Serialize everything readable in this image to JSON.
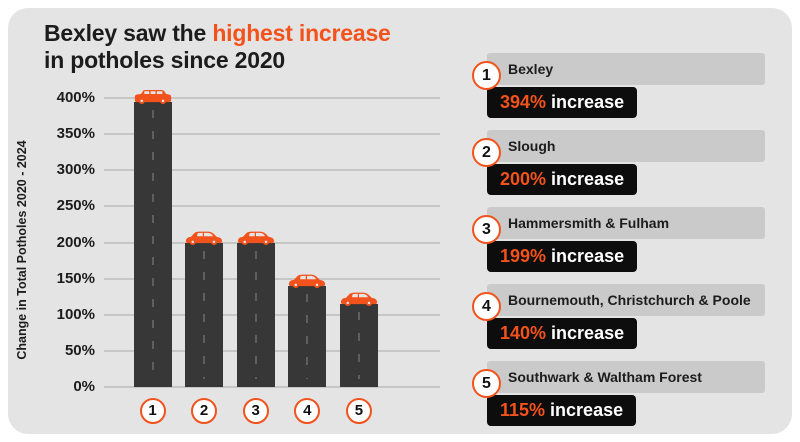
{
  "title": {
    "prefix": "Bexley saw the ",
    "highlight": "highest increase",
    "line2": "in potholes since 2020"
  },
  "colors": {
    "accent_orange": "#F2521B",
    "card_background": "#E5E4E4",
    "bar_dark": "#373737",
    "gridline_gray": "#C7C6C6",
    "legend_bar_gray": "#CBCACA",
    "badge_black": "#0D0D0D",
    "text_black": "#1C1C1C",
    "circle_fill": "#FFFFFF"
  },
  "chart_data": {
    "type": "bar",
    "title": "Bexley saw the highest increase in potholes since 2020",
    "categories": [
      "1",
      "2",
      "3",
      "4",
      "5"
    ],
    "values": [
      394,
      200,
      199,
      140,
      115
    ],
    "series_names": [
      "Bexley",
      "Slough",
      "Hammersmith & Fulham",
      "Bournemouth, Christchurch & Poole",
      "Southwark & Waltham Forest"
    ],
    "xlabel": "",
    "ylabel": "Change in Total Potholes 2020 - 2024",
    "ylim": [
      0,
      400
    ],
    "ytick_step": 50,
    "ytick_labels": [
      "400%",
      "350%",
      "300%",
      "250%",
      "200%",
      "150%",
      "100%",
      "50%",
      "0%"
    ],
    "grid": true,
    "legend_position": "right",
    "bar_icons": [
      "car-suv-icon",
      "car-sedan-icon",
      "car-sedan-icon",
      "car-sedan-icon",
      "car-sedan-icon"
    ]
  },
  "legend": {
    "items": [
      {
        "rank": "1",
        "name": "Bexley",
        "percent": "394%",
        "suffix": " increase"
      },
      {
        "rank": "2",
        "name": "Slough",
        "percent": "200%",
        "suffix": " increase"
      },
      {
        "rank": "3",
        "name": "Hammersmith & Fulham",
        "percent": "199%",
        "suffix": " increase"
      },
      {
        "rank": "4",
        "name": "Bournemouth, Christchurch & Poole",
        "percent": "140%",
        "suffix": " increase"
      },
      {
        "rank": "5",
        "name": "Southwark & Waltham Forest",
        "percent": "115%",
        "suffix": " increase"
      }
    ]
  }
}
